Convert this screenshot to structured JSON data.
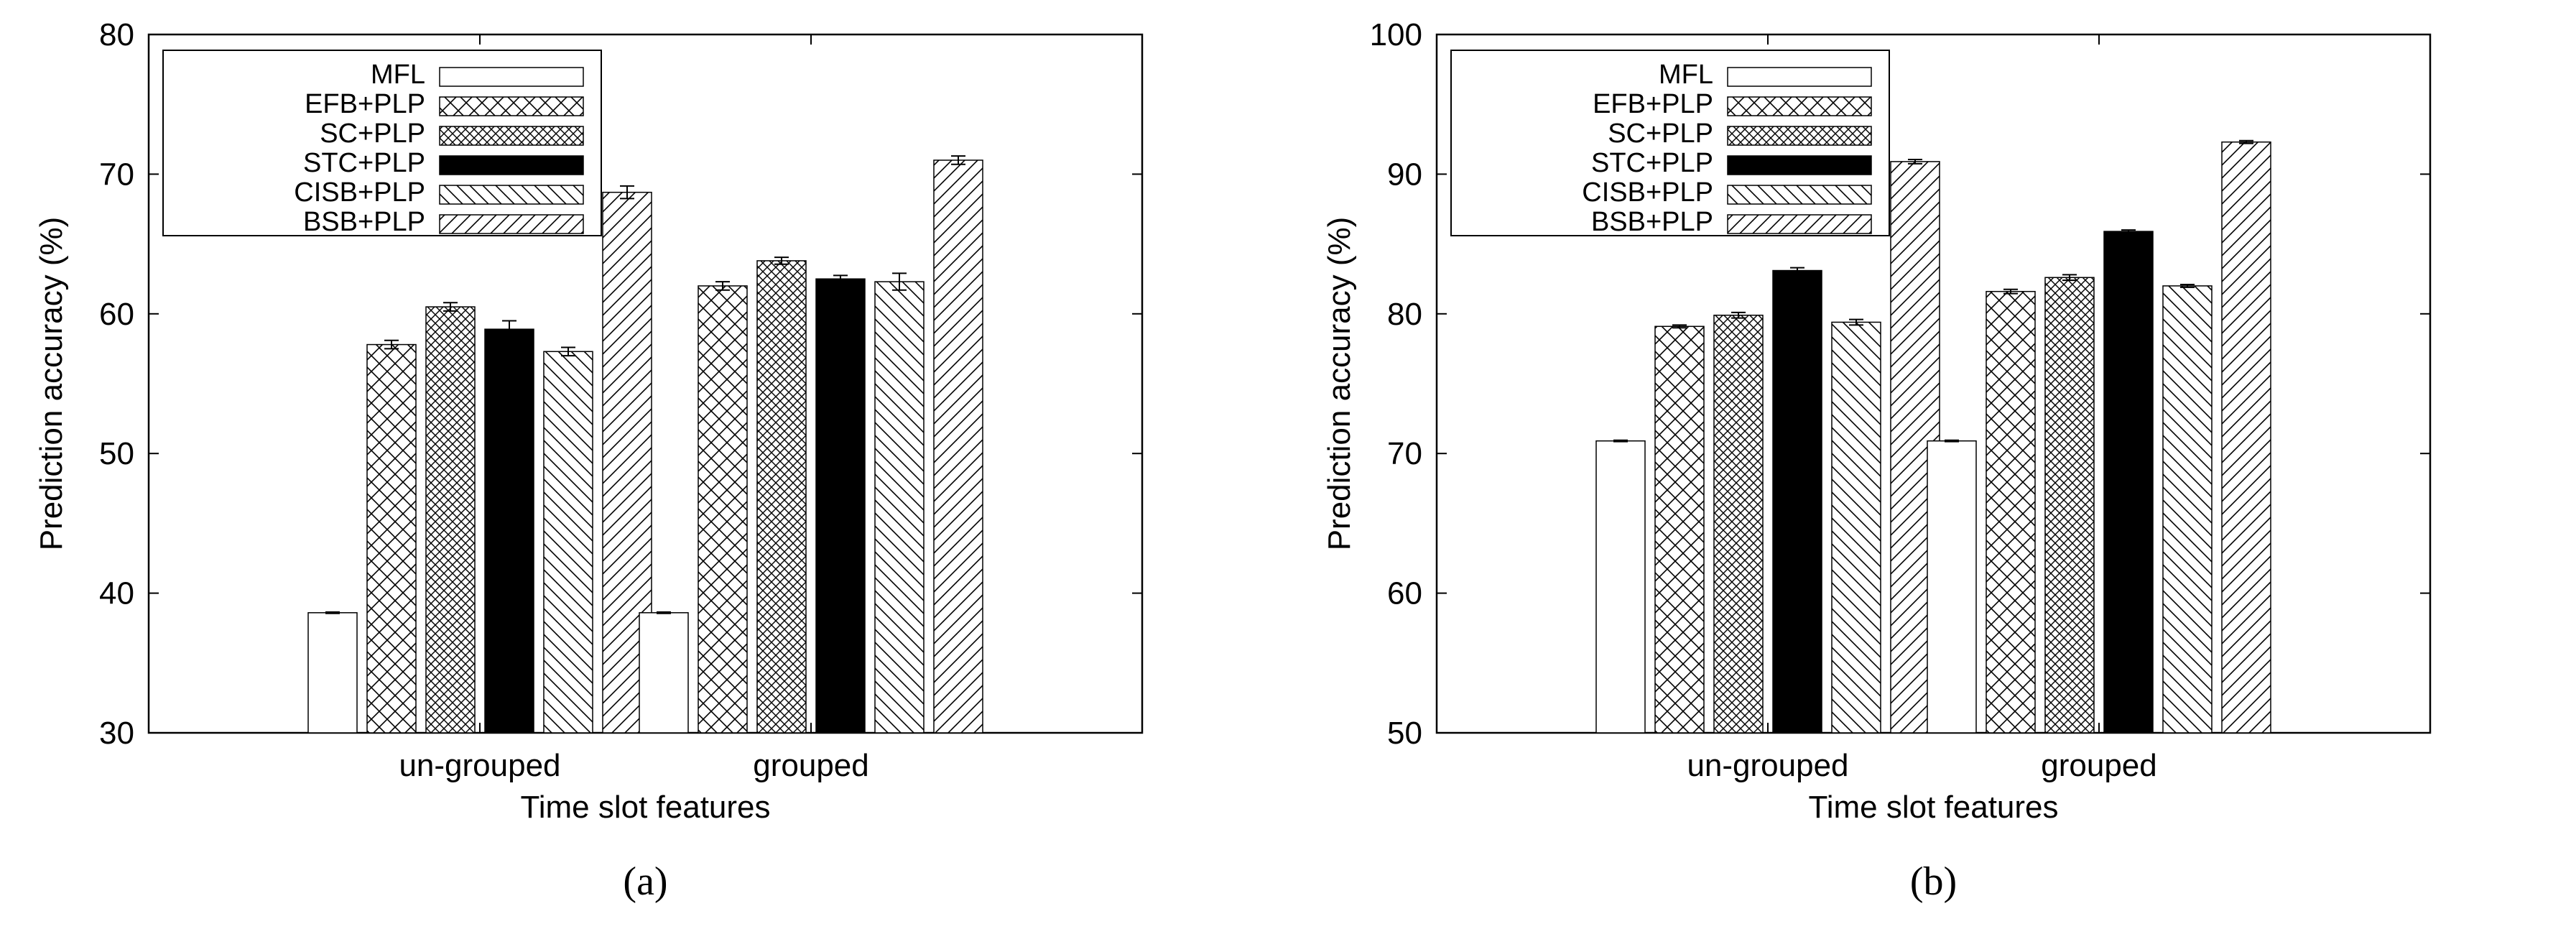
{
  "chart_data": [
    {
      "type": "bar",
      "caption": "(a)",
      "xlabel": "Time slot features",
      "ylabel": "Prediction accuracy (%)",
      "ylim": [
        30,
        80
      ],
      "yticks": [
        30,
        40,
        50,
        60,
        70,
        80
      ],
      "categories": [
        "un-grouped",
        "grouped"
      ],
      "legend_position": "top-left",
      "series": [
        {
          "name": "MFL",
          "pattern": "none",
          "values": [
            38.6,
            38.6
          ],
          "errors": [
            0.05,
            0.05
          ]
        },
        {
          "name": "EFB+PLP",
          "pattern": "cross",
          "values": [
            57.8,
            62.0
          ],
          "errors": [
            0.3,
            0.3
          ]
        },
        {
          "name": "SC+PLP",
          "pattern": "dense-cross",
          "values": [
            60.5,
            63.8
          ],
          "errors": [
            0.3,
            0.25
          ]
        },
        {
          "name": "STC+PLP",
          "pattern": "solid",
          "values": [
            58.9,
            62.5
          ],
          "errors": [
            0.6,
            0.25
          ]
        },
        {
          "name": "CISB+PLP",
          "pattern": "back-diagonal",
          "values": [
            57.3,
            62.3
          ],
          "errors": [
            0.3,
            0.6
          ]
        },
        {
          "name": "BSB+PLP",
          "pattern": "forward-diagonal",
          "values": [
            68.7,
            71.0
          ],
          "errors": [
            0.45,
            0.3
          ]
        }
      ]
    },
    {
      "type": "bar",
      "caption": "(b)",
      "xlabel": "Time slot features",
      "ylabel": "Prediction accuracy (%)",
      "ylim": [
        50,
        100
      ],
      "yticks": [
        50,
        60,
        70,
        80,
        90,
        100
      ],
      "categories": [
        "un-grouped",
        "grouped"
      ],
      "legend_position": "top-left",
      "series": [
        {
          "name": "MFL",
          "pattern": "none",
          "values": [
            70.9,
            70.9
          ],
          "errors": [
            0.05,
            0.05
          ]
        },
        {
          "name": "EFB+PLP",
          "pattern": "cross",
          "values": [
            79.1,
            81.6
          ],
          "errors": [
            0.1,
            0.15
          ]
        },
        {
          "name": "SC+PLP",
          "pattern": "dense-cross",
          "values": [
            79.9,
            82.6
          ],
          "errors": [
            0.2,
            0.2
          ]
        },
        {
          "name": "STC+PLP",
          "pattern": "solid",
          "values": [
            83.1,
            85.9
          ],
          "errors": [
            0.2,
            0.1
          ]
        },
        {
          "name": "CISB+PLP",
          "pattern": "back-diagonal",
          "values": [
            79.4,
            82.0
          ],
          "errors": [
            0.2,
            0.1
          ]
        },
        {
          "name": "BSB+PLP",
          "pattern": "forward-diagonal",
          "values": [
            90.9,
            92.3
          ],
          "errors": [
            0.15,
            0.1
          ]
        }
      ]
    }
  ]
}
